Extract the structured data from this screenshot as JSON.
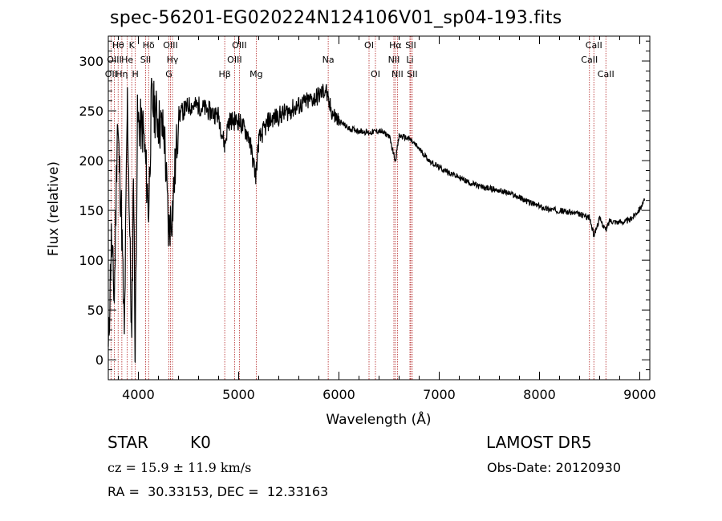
{
  "title": "spec-56201-EG020224N124106V01_sp04-193.fits",
  "info": {
    "class_label": "STAR",
    "subclass": "K0",
    "survey": "LAMOST DR5",
    "cz": "cz = 15.9 ± 11.9 km/s",
    "obs_date": "Obs-Date: 20120930",
    "radec": "RA =  30.33153, DEC =  12.33163"
  },
  "colors": {
    "spectrum": "#000000",
    "lines": "#b22222",
    "axes": "#000000"
  },
  "chart_data": {
    "type": "line",
    "xlabel": "Wavelength (Å)",
    "ylabel": "Flux (relative)",
    "xlim": [
      3700,
      9100
    ],
    "ylim": [
      -20,
      325
    ],
    "xticks": [
      4000,
      5000,
      6000,
      7000,
      8000,
      9000
    ],
    "yticks": [
      0,
      50,
      100,
      150,
      200,
      250,
      300
    ],
    "grid": false,
    "spectrum_anchors": [
      [
        3700,
        5
      ],
      [
        3730,
        120
      ],
      [
        3760,
        60
      ],
      [
        3790,
        240
      ],
      [
        3830,
        150
      ],
      [
        3860,
        20
      ],
      [
        3890,
        260
      ],
      [
        3934,
        10
      ],
      [
        3950,
        200
      ],
      [
        3968,
        0
      ],
      [
        3990,
        240
      ],
      [
        4050,
        230
      ],
      [
        4102,
        150
      ],
      [
        4130,
        260
      ],
      [
        4200,
        240
      ],
      [
        4260,
        225
      ],
      [
        4300,
        130
      ],
      [
        4340,
        150
      ],
      [
        4400,
        245
      ],
      [
        4500,
        255
      ],
      [
        4600,
        255
      ],
      [
        4700,
        250
      ],
      [
        4800,
        245
      ],
      [
        4861,
        215
      ],
      [
        4900,
        240
      ],
      [
        5000,
        240
      ],
      [
        5100,
        225
      ],
      [
        5170,
        185
      ],
      [
        5200,
        220
      ],
      [
        5300,
        240
      ],
      [
        5400,
        245
      ],
      [
        5500,
        250
      ],
      [
        5600,
        255
      ],
      [
        5700,
        260
      ],
      [
        5800,
        265
      ],
      [
        5870,
        272
      ],
      [
        5893,
        258
      ],
      [
        5950,
        245
      ],
      [
        6000,
        240
      ],
      [
        6100,
        232
      ],
      [
        6200,
        230
      ],
      [
        6300,
        228
      ],
      [
        6400,
        230
      ],
      [
        6500,
        225
      ],
      [
        6563,
        200
      ],
      [
        6600,
        225
      ],
      [
        6700,
        222
      ],
      [
        6800,
        212
      ],
      [
        6900,
        200
      ],
      [
        7000,
        193
      ],
      [
        7100,
        188
      ],
      [
        7200,
        183
      ],
      [
        7300,
        178
      ],
      [
        7400,
        174
      ],
      [
        7500,
        172
      ],
      [
        7600,
        170
      ],
      [
        7700,
        167
      ],
      [
        7800,
        163
      ],
      [
        7900,
        158
      ],
      [
        8000,
        154
      ],
      [
        8100,
        151
      ],
      [
        8200,
        150
      ],
      [
        8300,
        148
      ],
      [
        8400,
        146
      ],
      [
        8498,
        143
      ],
      [
        8542,
        125
      ],
      [
        8600,
        142
      ],
      [
        8662,
        130
      ],
      [
        8700,
        140
      ],
      [
        8800,
        138
      ],
      [
        8900,
        140
      ],
      [
        9000,
        152
      ],
      [
        9050,
        160
      ]
    ],
    "lines": [
      {
        "label": "Hθ",
        "x": 3798,
        "row": 0
      },
      {
        "label": "OII",
        "x": 3727,
        "row": 2
      },
      {
        "label": "OIII",
        "x": 3760,
        "row": 1
      },
      {
        "label": "Hη",
        "x": 3835,
        "row": 2
      },
      {
        "label": "He",
        "x": 3889,
        "row": 1
      },
      {
        "label": "K",
        "x": 3934,
        "row": 0
      },
      {
        "label": "H",
        "x": 3969,
        "row": 2
      },
      {
        "label": "SII",
        "x": 4072,
        "row": 1
      },
      {
        "label": "Hδ",
        "x": 4102,
        "row": 0
      },
      {
        "label": "G",
        "x": 4304,
        "row": 2
      },
      {
        "label": "OIII",
        "x": 4320,
        "row": 0
      },
      {
        "label": "Hγ",
        "x": 4340,
        "row": 1
      },
      {
        "label": "Hβ",
        "x": 4861,
        "row": 2
      },
      {
        "label": "OIII",
        "x": 5007,
        "row": 0
      },
      {
        "label": "OIII",
        "x": 4959,
        "row": 1
      },
      {
        "label": "Mg",
        "x": 5175,
        "row": 2
      },
      {
        "label": "Na",
        "x": 5893,
        "row": 1
      },
      {
        "label": "OI",
        "x": 6300,
        "row": 0
      },
      {
        "label": "OI",
        "x": 6364,
        "row": 2
      },
      {
        "label": "Hα",
        "x": 6563,
        "row": 0
      },
      {
        "label": "NII",
        "x": 6548,
        "row": 1
      },
      {
        "label": "NII",
        "x": 6583,
        "row": 2
      },
      {
        "label": "SII",
        "x": 6716,
        "row": 0
      },
      {
        "label": "Li",
        "x": 6708,
        "row": 1
      },
      {
        "label": "SII",
        "x": 6731,
        "row": 2
      },
      {
        "label": "CaII",
        "x": 8542,
        "row": 0
      },
      {
        "label": "CaII",
        "x": 8498,
        "row": 1
      },
      {
        "label": "CaII",
        "x": 8662,
        "row": 2
      }
    ]
  }
}
